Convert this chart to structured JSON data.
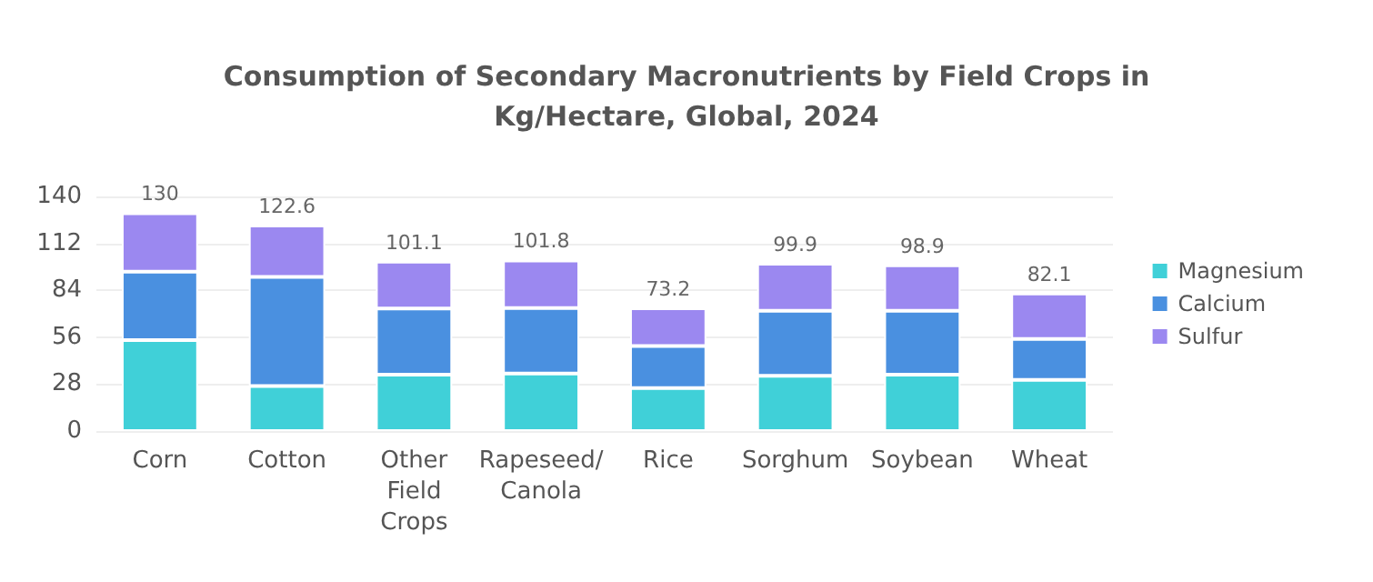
{
  "chart_data": {
    "type": "bar",
    "title": "Consumption of Secondary Macronutrients by Field Crops in\nKg/Hectare, Global, 2024",
    "categories": [
      "Corn",
      "Cotton",
      "Other\nField\nCrops",
      "Rapeseed/\nCanola",
      "Rice",
      "Sorghum",
      "Soybean",
      "Wheat"
    ],
    "series": [
      {
        "name": "Magnesium",
        "color": "#40d0d8",
        "values": [
          54.2,
          26.8,
          33.6,
          34.3,
          25.7,
          32.9,
          33.6,
          30.5
        ]
      },
      {
        "name": "Calcium",
        "color": "#4a90e0",
        "values": [
          40.9,
          65.2,
          39.5,
          39.1,
          25.1,
          38.8,
          38.1,
          24.4
        ]
      },
      {
        "name": "Sulfur",
        "color": "#9b88f0",
        "values": [
          34.9,
          30.6,
          28.0,
          28.4,
          22.4,
          28.2,
          27.2,
          27.2
        ]
      }
    ],
    "stacked": true,
    "totals": [
      "130",
      "122.6",
      "101.1",
      "101.8",
      "73.2",
      "99.9",
      "98.9",
      "82.1"
    ],
    "ylim": [
      0,
      140
    ],
    "yticks": [
      0,
      28,
      56,
      84,
      112,
      140
    ],
    "grid": "y",
    "legend": "right"
  }
}
